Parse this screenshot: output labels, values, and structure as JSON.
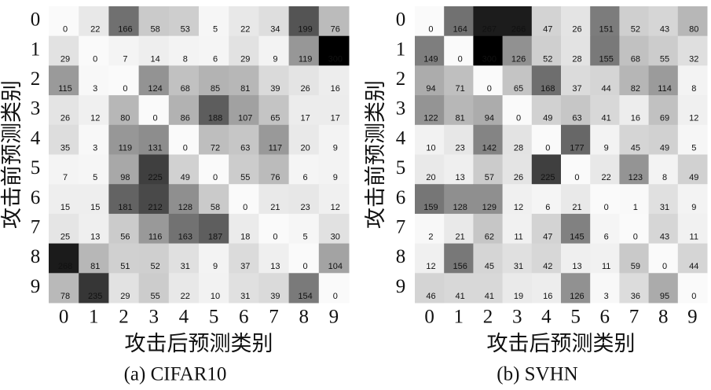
{
  "chart_data": [
    {
      "type": "heatmap",
      "title": "(a) CIFAR10",
      "xlabel": "攻击后预测类别",
      "ylabel": "攻击前预测类别",
      "xticks": [
        0,
        1,
        2,
        3,
        4,
        5,
        6,
        7,
        8,
        9
      ],
      "yticks": [
        0,
        1,
        2,
        3,
        4,
        5,
        6,
        7,
        8,
        9
      ],
      "values": [
        [
          0,
          22,
          166,
          58,
          53,
          5,
          22,
          34,
          199,
          76
        ],
        [
          29,
          0,
          7,
          14,
          8,
          6,
          29,
          9,
          119,
          300
        ],
        [
          115,
          3,
          0,
          124,
          68,
          85,
          81,
          39,
          26,
          16
        ],
        [
          26,
          12,
          80,
          0,
          86,
          188,
          107,
          65,
          17,
          17
        ],
        [
          35,
          3,
          119,
          131,
          0,
          72,
          63,
          117,
          20,
          9
        ],
        [
          7,
          5,
          98,
          225,
          49,
          0,
          55,
          76,
          6,
          9
        ],
        [
          15,
          15,
          181,
          212,
          128,
          58,
          0,
          21,
          23,
          12
        ],
        [
          25,
          13,
          56,
          116,
          163,
          187,
          18,
          0,
          5,
          30
        ],
        [
          268,
          81,
          51,
          52,
          31,
          9,
          37,
          13,
          0,
          104
        ],
        [
          78,
          235,
          29,
          55,
          22,
          10,
          31,
          39,
          154,
          0
        ]
      ]
    },
    {
      "type": "heatmap",
      "title": "(b) SVHN",
      "xlabel": "攻击后预测类别",
      "ylabel": "攻击前预测类别",
      "xticks": [
        0,
        1,
        2,
        3,
        4,
        5,
        6,
        7,
        8,
        9
      ],
      "yticks": [
        0,
        1,
        2,
        3,
        4,
        5,
        6,
        7,
        8,
        9
      ],
      "values": [
        [
          0,
          164,
          267,
          266,
          47,
          26,
          151,
          52,
          43,
          80
        ],
        [
          149,
          0,
          300,
          126,
          52,
          28,
          155,
          68,
          55,
          32
        ],
        [
          94,
          71,
          0,
          65,
          168,
          37,
          44,
          82,
          114,
          8
        ],
        [
          122,
          81,
          94,
          0,
          49,
          63,
          41,
          16,
          69,
          12
        ],
        [
          10,
          23,
          142,
          28,
          0,
          177,
          9,
          45,
          49,
          5
        ],
        [
          20,
          13,
          57,
          26,
          225,
          0,
          22,
          123,
          8,
          49
        ],
        [
          159,
          128,
          129,
          12,
          6,
          21,
          0,
          1,
          31,
          9
        ],
        [
          2,
          21,
          62,
          11,
          47,
          145,
          6,
          0,
          43,
          11
        ],
        [
          12,
          156,
          45,
          31,
          42,
          13,
          11,
          59,
          0,
          44
        ],
        [
          46,
          41,
          41,
          19,
          16,
          126,
          3,
          36,
          95,
          0
        ]
      ]
    }
  ]
}
